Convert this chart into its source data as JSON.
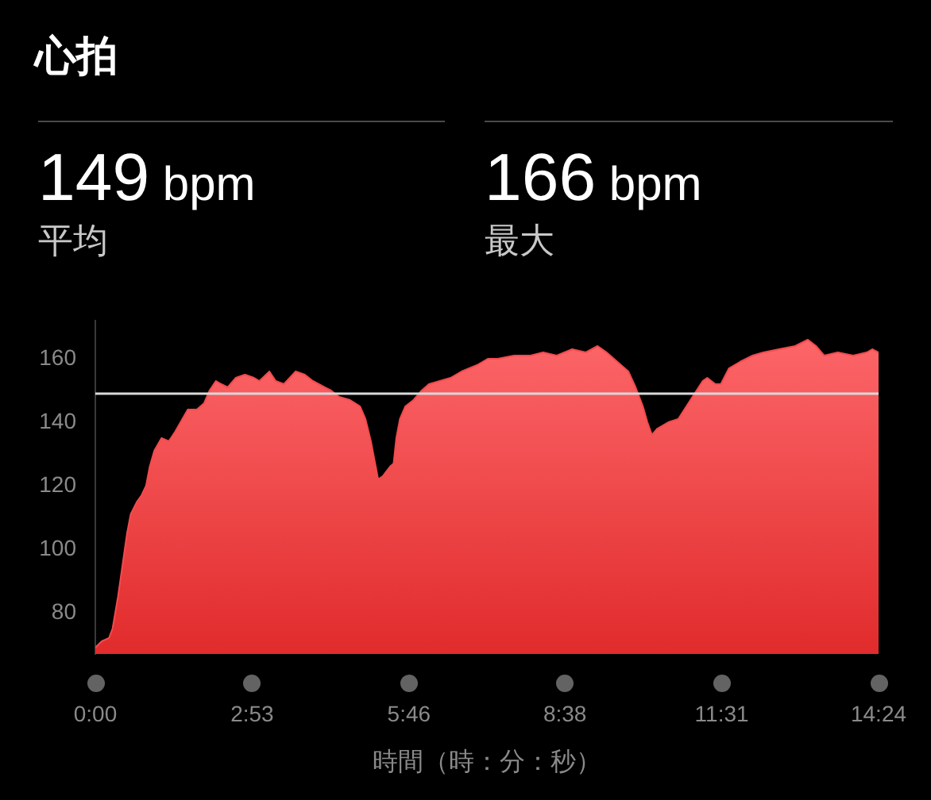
{
  "chart_data": {
    "type": "area",
    "title": "心拍",
    "xlabel": "時間（時：分：秒）",
    "annotations": [
      "149 bpm",
      "平均",
      "166 bpm",
      "最大"
    ],
    "x": [
      0,
      7,
      15,
      19,
      25,
      30,
      35,
      39,
      46,
      51,
      56,
      60,
      65,
      73,
      81,
      88,
      96,
      102,
      112,
      120,
      126,
      133,
      139,
      146,
      155,
      165,
      175,
      181,
      192,
      199,
      208,
      221,
      231,
      240,
      253,
      260,
      269,
      281,
      292,
      298,
      304,
      308,
      312,
      317,
      325,
      329,
      332,
      336,
      342,
      351,
      360,
      368,
      380,
      392,
      404,
      421,
      433,
      444,
      462,
      480,
      494,
      509,
      526,
      541,
      554,
      564,
      576,
      588,
      596,
      604,
      609,
      614,
      620,
      632,
      643,
      652,
      661,
      670,
      675,
      684,
      690,
      699,
      711,
      725,
      737,
      754,
      772,
      786,
      795,
      804,
      819,
      836,
      851,
      857,
      864
    ],
    "series": [
      {
        "color": "#f24b4d",
        "values": [
          69,
          71,
          72,
          75,
          85,
          95,
          105,
          111,
          115,
          117,
          120,
          126,
          131,
          135,
          134,
          137,
          141,
          144,
          144,
          146,
          150,
          153,
          152,
          151,
          154,
          155,
          154,
          153,
          156,
          153,
          152,
          156,
          155,
          153,
          151,
          150,
          148,
          147,
          145,
          141,
          134,
          128,
          122,
          123,
          126,
          127,
          135,
          141,
          145,
          147,
          150,
          152,
          153,
          154,
          156,
          158,
          160,
          160,
          161,
          161,
          162,
          161,
          163,
          162,
          164,
          162,
          159,
          156,
          151,
          145,
          140,
          136,
          138,
          140,
          141,
          145,
          149,
          153,
          154,
          152,
          152,
          157,
          159,
          161,
          162,
          163,
          164,
          166,
          164,
          161,
          162,
          161,
          162,
          163,
          162
        ]
      }
    ],
    "xlim": [
      0,
      864
    ],
    "xticks": [
      {
        "value": 0,
        "label": "0:00"
      },
      {
        "value": 173,
        "label": "2:53"
      },
      {
        "value": 346,
        "label": "5:46"
      },
      {
        "value": 518,
        "label": "8:38"
      },
      {
        "value": 691,
        "label": "11:31"
      },
      {
        "value": 864,
        "label": "14:24"
      }
    ],
    "ylim": [
      67,
      172
    ],
    "yticks": [
      80,
      100,
      120,
      140,
      160
    ],
    "ref_lines": [
      {
        "axis": "y",
        "value": 149,
        "color": "#d9d9d9"
      }
    ],
    "grid": false,
    "legend": false
  }
}
